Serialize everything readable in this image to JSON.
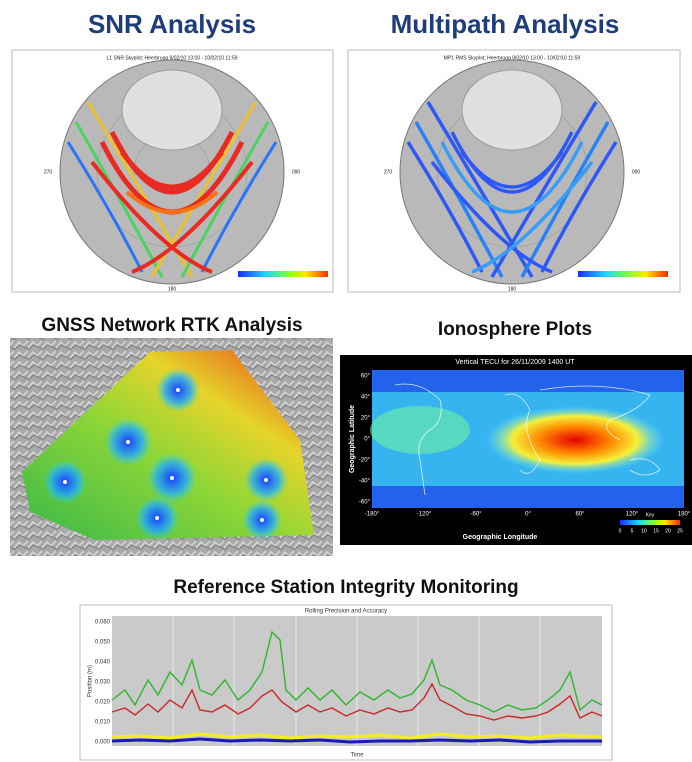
{
  "snr": {
    "title": "SNR Analysis",
    "plot_title": "L1 SNR Skyplot; Heerbrugg 9/02/10 13:00 - 10/02/10 11:59",
    "azimuth_labels": [
      "270",
      "090",
      "180"
    ]
  },
  "multipath": {
    "title": "Multipath Analysis",
    "plot_title": "MP1 RMS Skyplot; Heerbrugg 9/02/10 13:00 - 10/02/10 11:59",
    "azimuth_labels": [
      "270",
      "090",
      "180"
    ]
  },
  "rtk": {
    "title": "GNSS Network RTK Analysis"
  },
  "ionosphere": {
    "title": "Ionosphere Plots",
    "plot_title": "Vertical TECU for 26/11/2009 1400 UT",
    "y_label": "Geographic Latitude",
    "x_label": "Geographic Longitude",
    "yticks": [
      "60°",
      "40°",
      "20°",
      "0°",
      "-20°",
      "-40°",
      "-60°"
    ],
    "xticks": [
      "-180°",
      "-120°",
      "-60°",
      "0°",
      "60°",
      "120°",
      "180°"
    ],
    "colorbar_title": "Key",
    "colorbar_ticks": [
      "0",
      "5",
      "10",
      "15",
      "20",
      "25"
    ]
  },
  "integrity": {
    "title": "Reference Station Integrity Monitoring",
    "plot_title": "Rolling Precision and Accuracy",
    "x_label": "Time",
    "y_label": "Position (m)",
    "yticks": [
      "0.060",
      "0.050",
      "0.040",
      "0.030",
      "0.020",
      "0.010",
      "0.000"
    ]
  }
}
